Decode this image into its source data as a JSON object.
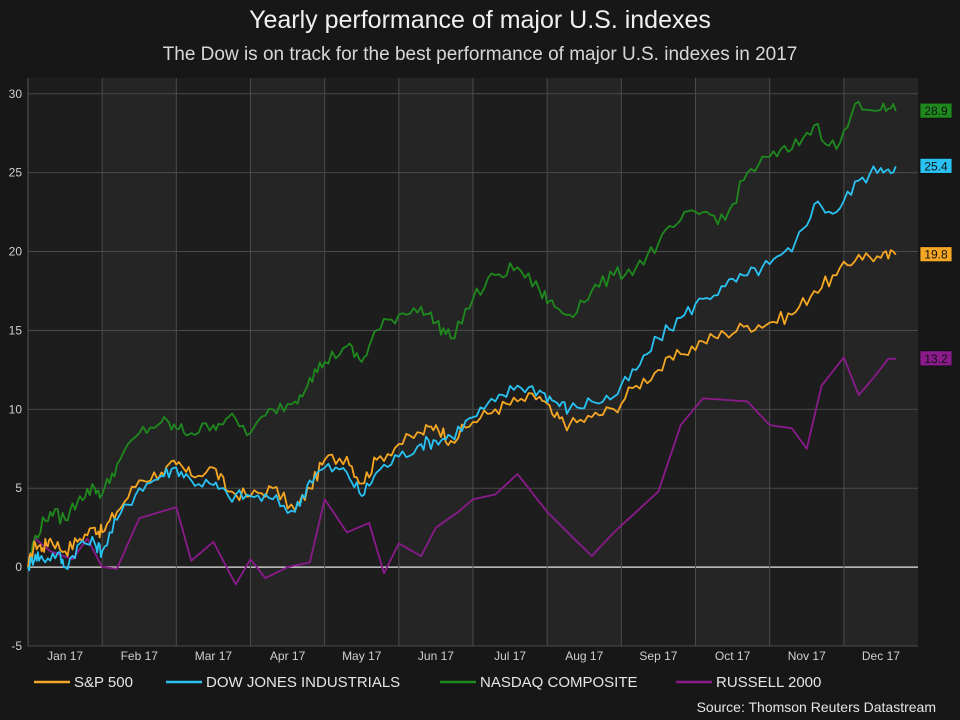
{
  "chart_data": {
    "type": "line",
    "title": "Yearly performance of major U.S. indexes",
    "subtitle": "The Dow is on track for the best performance of major U.S. indexes in 2017",
    "source": "Source: Thomson Reuters Datastream",
    "xlabel": "",
    "ylabel": "",
    "ylim": [
      -5,
      31
    ],
    "yticks": [
      -5,
      0,
      5,
      10,
      15,
      20,
      25,
      30
    ],
    "xlim": [
      0,
      12
    ],
    "months": [
      "Jan 17",
      "Feb 17",
      "Mar 17",
      "Apr 17",
      "May 17",
      "Jun 17",
      "Jul 17",
      "Aug 17",
      "Sep 17",
      "Oct 17",
      "Nov 17",
      "Dec 17"
    ],
    "grid": true,
    "legend_position": "bottom",
    "background": "#171717",
    "plot_background": "#1f1f1f",
    "series": [
      {
        "name": "S&P 500",
        "color": "#f5a623",
        "end_label": "19.8",
        "points": [
          [
            0,
            0
          ],
          [
            0.1,
            1.5
          ],
          [
            0.2,
            1.2
          ],
          [
            0.3,
            1.8
          ],
          [
            0.5,
            1.0
          ],
          [
            0.7,
            1.8
          ],
          [
            0.9,
            2.5
          ],
          [
            1.0,
            2.2
          ],
          [
            1.2,
            3.5
          ],
          [
            1.5,
            5.5
          ],
          [
            1.8,
            6.0
          ],
          [
            2.0,
            6.5
          ],
          [
            2.2,
            5.8
          ],
          [
            2.5,
            6.3
          ],
          [
            2.7,
            4.8
          ],
          [
            3.0,
            4.5
          ],
          [
            3.3,
            5.0
          ],
          [
            3.6,
            3.6
          ],
          [
            3.8,
            5.0
          ],
          [
            4.0,
            6.8
          ],
          [
            4.3,
            7.0
          ],
          [
            4.5,
            5.3
          ],
          [
            4.7,
            6.8
          ],
          [
            5.0,
            7.8
          ],
          [
            5.3,
            8.5
          ],
          [
            5.5,
            9.0
          ],
          [
            5.7,
            8.0
          ],
          [
            6.0,
            9.2
          ],
          [
            6.3,
            10.0
          ],
          [
            6.6,
            10.5
          ],
          [
            6.9,
            10.8
          ],
          [
            7.1,
            9.5
          ],
          [
            7.3,
            9.0
          ],
          [
            7.6,
            9.5
          ],
          [
            7.9,
            10.0
          ],
          [
            8.2,
            11.5
          ],
          [
            8.5,
            12.5
          ],
          [
            8.8,
            13.5
          ],
          [
            9.1,
            14.3
          ],
          [
            9.4,
            14.8
          ],
          [
            9.7,
            15.3
          ],
          [
            10.0,
            15.5
          ],
          [
            10.3,
            16.0
          ],
          [
            10.6,
            17.5
          ],
          [
            10.9,
            18.5
          ],
          [
            11.2,
            19.8
          ],
          [
            11.5,
            19.6
          ],
          [
            11.7,
            19.8
          ]
        ]
      },
      {
        "name": "DOW JONES INDUSTRIALS",
        "color": "#29c2f2",
        "end_label": "25.4",
        "points": [
          [
            0,
            0
          ],
          [
            0.1,
            0.8
          ],
          [
            0.2,
            0.5
          ],
          [
            0.4,
            0.9
          ],
          [
            0.5,
            0.0
          ],
          [
            0.7,
            1.5
          ],
          [
            0.9,
            1.5
          ],
          [
            1.0,
            1.0
          ],
          [
            1.2,
            3.0
          ],
          [
            1.5,
            5.0
          ],
          [
            1.8,
            5.8
          ],
          [
            2.0,
            6.3
          ],
          [
            2.2,
            5.5
          ],
          [
            2.5,
            5.2
          ],
          [
            2.7,
            4.5
          ],
          [
            3.0,
            4.5
          ],
          [
            3.3,
            4.3
          ],
          [
            3.6,
            3.5
          ],
          [
            3.8,
            5.5
          ],
          [
            4.0,
            6.3
          ],
          [
            4.3,
            6.0
          ],
          [
            4.5,
            4.5
          ],
          [
            4.7,
            6.0
          ],
          [
            5.0,
            7.0
          ],
          [
            5.3,
            7.8
          ],
          [
            5.5,
            8.0
          ],
          [
            5.7,
            8.3
          ],
          [
            6.0,
            9.5
          ],
          [
            6.3,
            10.5
          ],
          [
            6.6,
            11.5
          ],
          [
            6.9,
            11.2
          ],
          [
            7.1,
            10.5
          ],
          [
            7.3,
            10.0
          ],
          [
            7.6,
            10.5
          ],
          [
            7.9,
            10.8
          ],
          [
            8.2,
            12.5
          ],
          [
            8.5,
            14.5
          ],
          [
            8.8,
            15.8
          ],
          [
            9.1,
            17.0
          ],
          [
            9.4,
            17.8
          ],
          [
            9.7,
            18.5
          ],
          [
            10.0,
            19.2
          ],
          [
            10.3,
            20.0
          ],
          [
            10.6,
            23.0
          ],
          [
            10.9,
            22.5
          ],
          [
            11.2,
            24.5
          ],
          [
            11.5,
            25.3
          ],
          [
            11.7,
            25.4
          ]
        ]
      },
      {
        "name": "NASDAQ COMPOSITE",
        "color": "#1e8a1e",
        "end_label": "28.9",
        "points": [
          [
            0,
            0
          ],
          [
            0.1,
            2.0
          ],
          [
            0.3,
            3.5
          ],
          [
            0.5,
            3.0
          ],
          [
            0.7,
            4.5
          ],
          [
            0.9,
            5.0
          ],
          [
            1.0,
            4.6
          ],
          [
            1.2,
            6.5
          ],
          [
            1.5,
            8.5
          ],
          [
            1.8,
            9.2
          ],
          [
            2.0,
            8.8
          ],
          [
            2.2,
            8.5
          ],
          [
            2.5,
            9.0
          ],
          [
            2.7,
            9.5
          ],
          [
            3.0,
            8.5
          ],
          [
            3.3,
            10.0
          ],
          [
            3.6,
            10.5
          ],
          [
            3.8,
            12.0
          ],
          [
            4.0,
            13.0
          ],
          [
            4.3,
            14.0
          ],
          [
            4.5,
            13.0
          ],
          [
            4.7,
            15.0
          ],
          [
            5.0,
            16.0
          ],
          [
            5.3,
            16.5
          ],
          [
            5.5,
            15.5
          ],
          [
            5.7,
            14.5
          ],
          [
            6.0,
            17.0
          ],
          [
            6.3,
            18.5
          ],
          [
            6.6,
            19.0
          ],
          [
            6.9,
            17.5
          ],
          [
            7.1,
            16.5
          ],
          [
            7.3,
            16.0
          ],
          [
            7.6,
            17.5
          ],
          [
            7.9,
            18.5
          ],
          [
            8.2,
            19.0
          ],
          [
            8.5,
            20.5
          ],
          [
            8.8,
            22.0
          ],
          [
            9.1,
            22.5
          ],
          [
            9.4,
            22.0
          ],
          [
            9.7,
            25.0
          ],
          [
            10.0,
            26.0
          ],
          [
            10.3,
            26.5
          ],
          [
            10.6,
            28.0
          ],
          [
            10.9,
            26.5
          ],
          [
            11.2,
            29.5
          ],
          [
            11.5,
            29.0
          ],
          [
            11.7,
            28.9
          ]
        ]
      },
      {
        "name": "RUSSELL 2000",
        "color": "#8b1a8b",
        "end_label": "13.2",
        "points": [
          [
            0,
            0
          ],
          [
            0.1,
            1.8
          ],
          [
            0.3,
            1.0
          ],
          [
            0.6,
            0.5
          ],
          [
            0.8,
            1.8
          ],
          [
            1.0,
            0.0
          ],
          [
            1.2,
            -0.1
          ],
          [
            1.5,
            3.1
          ],
          [
            2.0,
            3.8
          ],
          [
            2.2,
            0.4
          ],
          [
            2.5,
            1.6
          ],
          [
            2.8,
            -1.1
          ],
          [
            3.0,
            0.5
          ],
          [
            3.2,
            -0.7
          ],
          [
            3.5,
            0.0
          ],
          [
            3.8,
            0.3
          ],
          [
            4.0,
            4.3
          ],
          [
            4.3,
            2.2
          ],
          [
            4.6,
            2.8
          ],
          [
            4.8,
            -0.4
          ],
          [
            5.0,
            1.5
          ],
          [
            5.3,
            0.7
          ],
          [
            5.5,
            2.5
          ],
          [
            5.8,
            3.5
          ],
          [
            6.0,
            4.3
          ],
          [
            6.3,
            4.6
          ],
          [
            6.6,
            5.9
          ],
          [
            7.0,
            3.5
          ],
          [
            7.3,
            2.1
          ],
          [
            7.6,
            0.7
          ],
          [
            7.9,
            2.2
          ],
          [
            8.2,
            3.5
          ],
          [
            8.5,
            4.8
          ],
          [
            8.8,
            9.0
          ],
          [
            9.1,
            10.7
          ],
          [
            9.4,
            10.6
          ],
          [
            9.7,
            10.5
          ],
          [
            10.0,
            9.0
          ],
          [
            10.3,
            8.8
          ],
          [
            10.5,
            7.5
          ],
          [
            10.7,
            11.5
          ],
          [
            11.0,
            13.3
          ],
          [
            11.2,
            10.9
          ],
          [
            11.4,
            12.0
          ],
          [
            11.6,
            13.2
          ],
          [
            11.7,
            13.2
          ]
        ]
      }
    ]
  }
}
